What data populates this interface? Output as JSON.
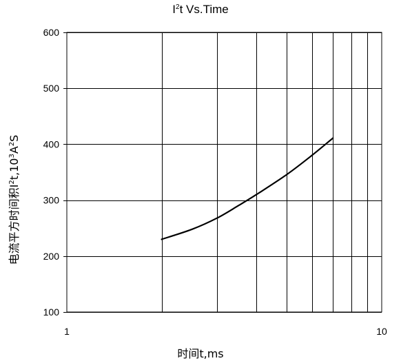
{
  "chart_data": {
    "type": "line",
    "title": {
      "prefix": "I",
      "sup": "2",
      "suffix": "t  Vs.Time"
    },
    "xlabel": "时间t,ms",
    "ylabel": {
      "part1": "电流平方时间积I",
      "sup1": "2",
      "part2": "t,10",
      "sup2": "3",
      "part3": "A",
      "sup3": "2",
      "part4": "S"
    },
    "x_scale": "log",
    "xlim": [
      1,
      10
    ],
    "ylim": [
      100,
      600
    ],
    "x_ticks": [
      1,
      10
    ],
    "x_tick_labels": [
      "1",
      "10"
    ],
    "x_gridlines": [
      2,
      3,
      4,
      5,
      6,
      7,
      8,
      9
    ],
    "y_ticks": [
      100,
      200,
      300,
      400,
      500,
      600
    ],
    "y_tick_labels": [
      "100",
      "200",
      "300",
      "400",
      "500",
      "600"
    ],
    "grid": true,
    "series": [
      {
        "color": "#000000",
        "x": [
          2.0,
          2.5,
          3.0,
          3.5,
          4.0,
          5.0,
          6.0,
          7.0
        ],
        "y": [
          230,
          248,
          268,
          290,
          310,
          346,
          380,
          411
        ]
      }
    ]
  }
}
